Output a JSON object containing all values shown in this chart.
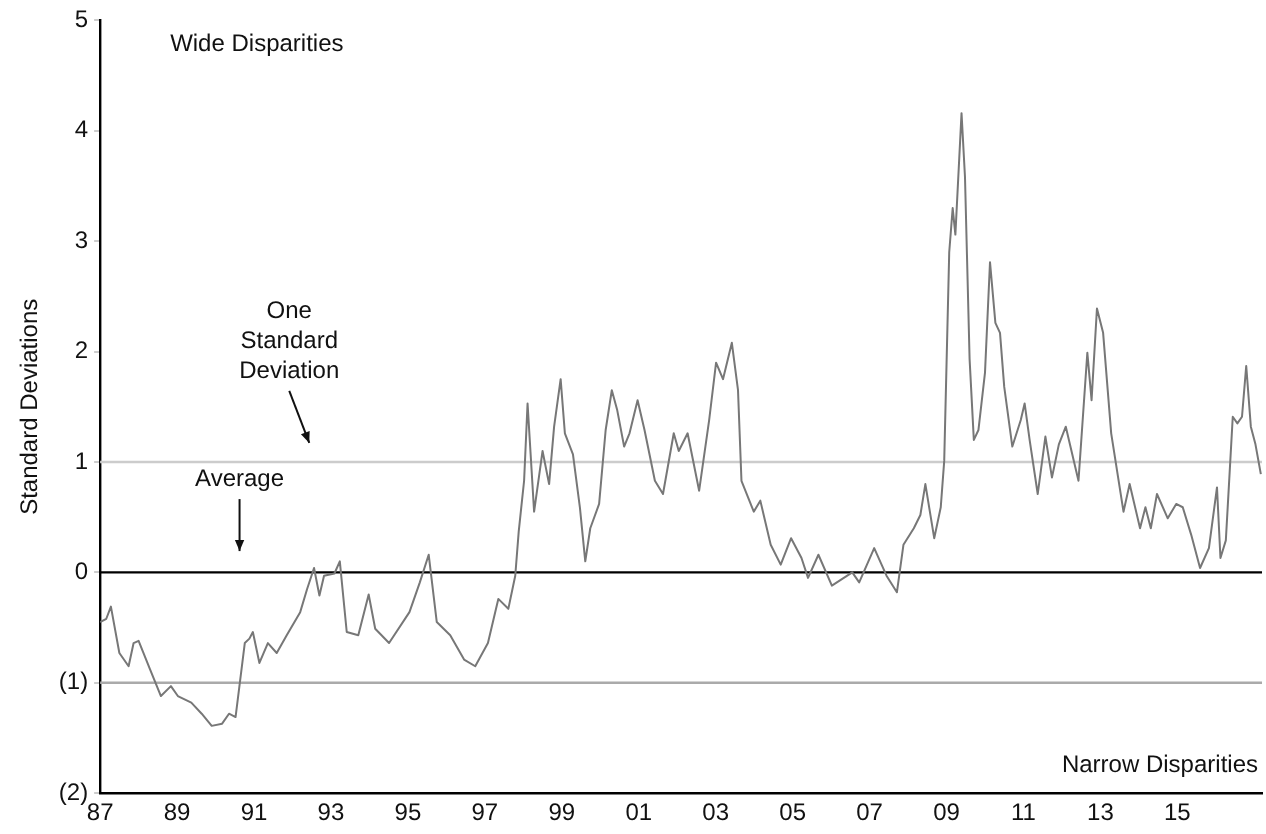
{
  "chart_data": {
    "type": "line",
    "ylabel": "Standard Deviations",
    "x": [
      1987.0,
      1987.16,
      1987.28,
      1987.5,
      1987.74,
      1987.87,
      1988.0,
      1988.3,
      1988.58,
      1988.84,
      1989.02,
      1989.37,
      1989.64,
      1989.9,
      1990.17,
      1990.35,
      1990.52,
      1990.76,
      1990.88,
      1990.97,
      1991.14,
      1991.36,
      1991.59,
      1991.85,
      1992.2,
      1992.38,
      1992.56,
      1992.7,
      1992.82,
      1993.09,
      1993.23,
      1993.41,
      1993.71,
      1993.98,
      1994.15,
      1994.51,
      1995.04,
      1995.31,
      1995.54,
      1995.75,
      1996.1,
      1996.46,
      1996.75,
      1997.08,
      1997.35,
      1997.61,
      1997.79,
      1997.88,
      1998.02,
      1998.11,
      1998.28,
      1998.5,
      1998.67,
      1998.8,
      1998.97,
      1999.08,
      1999.29,
      1999.47,
      1999.61,
      1999.74,
      1999.97,
      2000.14,
      2000.3,
      2000.44,
      2000.62,
      2000.76,
      2000.97,
      2001.15,
      2001.42,
      2001.63,
      2001.91,
      2002.04,
      2002.27,
      2002.57,
      2002.83,
      2003.01,
      2003.19,
      2003.42,
      2003.58,
      2003.67,
      2003.99,
      2004.16,
      2004.43,
      2004.69,
      2004.96,
      2005.23,
      2005.4,
      2005.67,
      2006.02,
      2006.55,
      2006.73,
      2007.12,
      2007.44,
      2007.71,
      2007.88,
      2008.15,
      2008.32,
      2008.45,
      2008.68,
      2008.85,
      2008.94,
      2009.07,
      2009.16,
      2009.23,
      2009.39,
      2009.48,
      2009.6,
      2009.71,
      2009.83,
      2010.0,
      2010.13,
      2010.27,
      2010.39,
      2010.5,
      2010.71,
      2010.93,
      2011.03,
      2011.16,
      2011.37,
      2011.57,
      2011.74,
      2011.92,
      2012.1,
      2012.43,
      2012.66,
      2012.77,
      2012.91,
      2013.07,
      2013.28,
      2013.6,
      2013.76,
      2014.03,
      2014.17,
      2014.31,
      2014.47,
      2014.75,
      2014.97,
      2015.14,
      2015.36,
      2015.59,
      2015.82,
      2016.03,
      2016.12,
      2016.26,
      2016.44,
      2016.56,
      2016.68,
      2016.79,
      2016.91,
      2017.03,
      2017.17
    ],
    "series": [
      {
        "color": "#777777",
        "values": [
          -0.45,
          -0.42,
          -0.31,
          -0.73,
          -0.85,
          -0.64,
          -0.62,
          -0.88,
          -1.12,
          -1.03,
          -1.12,
          -1.18,
          -1.28,
          -1.39,
          -1.37,
          -1.28,
          -1.31,
          -0.64,
          -0.6,
          -0.54,
          -0.82,
          -0.64,
          -0.73,
          -0.57,
          -0.36,
          -0.15,
          0.04,
          -0.21,
          -0.03,
          -0.01,
          0.1,
          -0.54,
          -0.57,
          -0.2,
          -0.51,
          -0.64,
          -0.36,
          -0.09,
          0.16,
          -0.45,
          -0.57,
          -0.79,
          -0.85,
          -0.64,
          -0.24,
          -0.33,
          -0.03,
          0.37,
          0.83,
          1.53,
          0.55,
          1.1,
          0.8,
          1.32,
          1.75,
          1.26,
          1.07,
          0.59,
          0.1,
          0.4,
          0.62,
          1.29,
          1.65,
          1.47,
          1.14,
          1.26,
          1.56,
          1.29,
          0.83,
          0.71,
          1.26,
          1.1,
          1.26,
          0.74,
          1.38,
          1.9,
          1.75,
          2.08,
          1.65,
          0.83,
          0.55,
          0.65,
          0.25,
          0.07,
          0.31,
          0.13,
          -0.05,
          0.16,
          -0.12,
          0.0,
          -0.09,
          0.22,
          -0.03,
          -0.18,
          0.25,
          0.4,
          0.52,
          0.8,
          0.31,
          0.59,
          1.01,
          2.9,
          3.3,
          3.06,
          4.16,
          3.58,
          1.93,
          1.2,
          1.29,
          1.81,
          2.81,
          2.26,
          2.17,
          1.68,
          1.14,
          1.38,
          1.53,
          1.2,
          0.71,
          1.23,
          0.86,
          1.16,
          1.32,
          0.83,
          1.99,
          1.56,
          2.39,
          2.17,
          1.26,
          0.55,
          0.8,
          0.4,
          0.59,
          0.4,
          0.71,
          0.49,
          0.62,
          0.59,
          0.34,
          0.04,
          0.22,
          0.77,
          0.13,
          0.29,
          1.41,
          1.35,
          1.41,
          1.87,
          1.32,
          1.16,
          0.89
        ]
      }
    ],
    "xlim": [
      1987,
      2017.2
    ],
    "xticks": [
      {
        "value": 1987,
        "label": "87"
      },
      {
        "value": 1989,
        "label": "89"
      },
      {
        "value": 1991,
        "label": "91"
      },
      {
        "value": 1993,
        "label": "93"
      },
      {
        "value": 1995,
        "label": "95"
      },
      {
        "value": 1997,
        "label": "97"
      },
      {
        "value": 1999,
        "label": "99"
      },
      {
        "value": 2001,
        "label": "01"
      },
      {
        "value": 2003,
        "label": "03"
      },
      {
        "value": 2005,
        "label": "05"
      },
      {
        "value": 2007,
        "label": "07"
      },
      {
        "value": 2009,
        "label": "09"
      },
      {
        "value": 2011,
        "label": "11"
      },
      {
        "value": 2013,
        "label": "13"
      },
      {
        "value": 2015,
        "label": "15"
      }
    ],
    "ylim": [
      -2,
      5
    ],
    "yticks": [
      {
        "value": -2,
        "label": "(2)"
      },
      {
        "value": -1,
        "label": "(1)"
      },
      0,
      1,
      2,
      3,
      4,
      5
    ],
    "ref_lines": [
      {
        "axis": "y",
        "value": 1,
        "color": "#cccccc"
      },
      {
        "axis": "y",
        "value": 0,
        "color": "#000000"
      },
      {
        "axis": "y",
        "value": -1,
        "color": "#aaaaaa"
      }
    ],
    "annotations": [
      "Wide Disparities",
      "Narrow Disparities",
      "One Standard Deviation",
      "Average"
    ],
    "grid": false,
    "legend": false,
    "marker": "none",
    "line_style": "solid"
  }
}
